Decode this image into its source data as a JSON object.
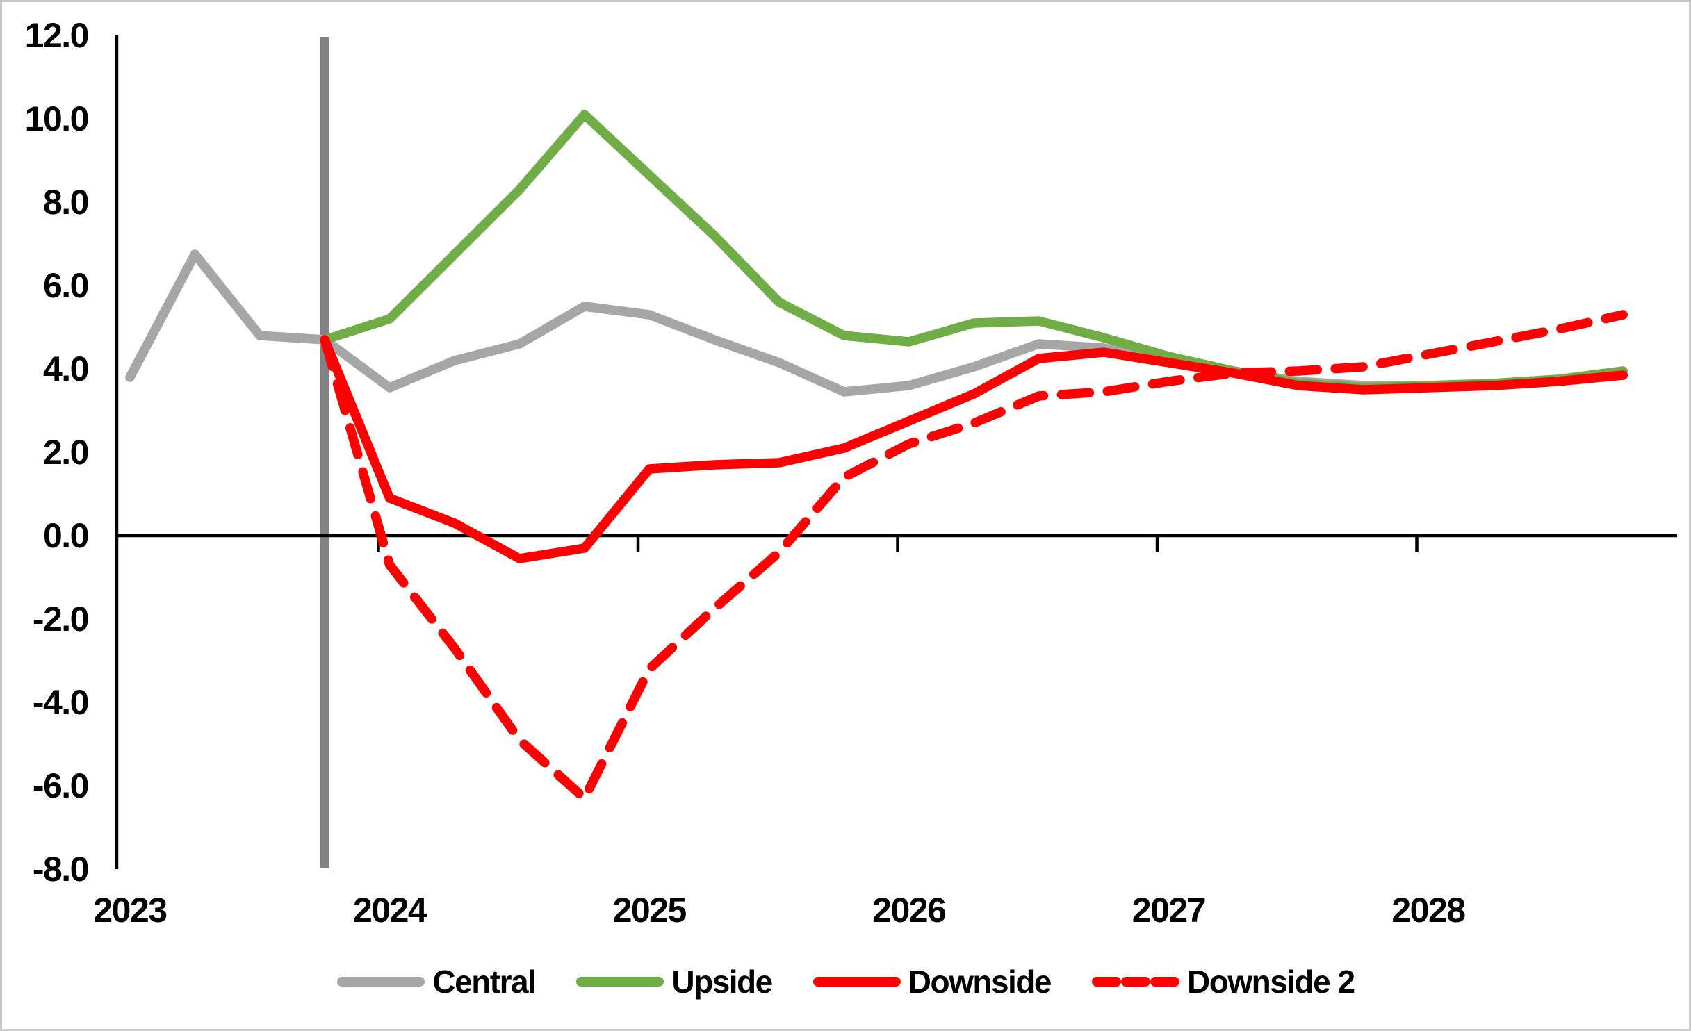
{
  "chart_data": {
    "type": "line",
    "title": "",
    "x_axis": {
      "year_labels": [
        "2023",
        "2024",
        "2025",
        "2026",
        "2027",
        "2028"
      ],
      "categories": [
        "2023 Q1",
        "2023 Q2",
        "2023 Q3",
        "2023 Q4",
        "2024 Q1",
        "2024 Q2",
        "2024 Q3",
        "2024 Q4",
        "2025 Q1",
        "2025 Q2",
        "2025 Q3",
        "2025 Q4",
        "2026 Q1",
        "2026 Q2",
        "2026 Q3",
        "2026 Q4",
        "2027 Q1",
        "2027 Q2",
        "2027 Q3",
        "2027 Q4",
        "2028 Q1",
        "2028 Q2",
        "2028 Q3",
        "2028 Q4"
      ],
      "n_points": 24
    },
    "y_axis": {
      "min": -8.0,
      "max": 12.0,
      "tick_step": 2.0,
      "tick_labels": [
        "12.0",
        "10.0",
        "8.0",
        "6.0",
        "4.0",
        "2.0",
        "0.0",
        "-2.0",
        "-4.0",
        "-6.0",
        "-8.0"
      ],
      "zero_line": true
    },
    "forecast_divider": {
      "x_category": "2023 Q4",
      "color": "#828282"
    },
    "grid": "off",
    "legend_position": "bottom",
    "series": [
      {
        "name": "Central",
        "color": "#A6A6A6",
        "style": "solid",
        "start_index": 0,
        "values": [
          3.8,
          6.75,
          4.8,
          4.7,
          3.55,
          4.2,
          4.6,
          5.5,
          5.3,
          4.7,
          4.15,
          3.45,
          3.6,
          4.05,
          4.6,
          4.5,
          4.2,
          3.95,
          3.7,
          3.6,
          3.6,
          3.65,
          3.75,
          3.85
        ]
      },
      {
        "name": "Upside",
        "color": "#70AD47",
        "style": "solid",
        "start_index": 3,
        "values": [
          4.7,
          5.2,
          6.75,
          8.3,
          10.1,
          8.65,
          7.2,
          5.6,
          4.8,
          4.65,
          5.1,
          5.15,
          4.75,
          4.3,
          3.95,
          3.65,
          3.55,
          3.6,
          3.65,
          3.75,
          3.95
        ]
      },
      {
        "name": "Downside",
        "color": "#FF0000",
        "style": "solid",
        "start_index": 3,
        "values": [
          4.7,
          0.9,
          0.3,
          -0.55,
          -0.3,
          1.6,
          1.7,
          1.75,
          2.1,
          2.75,
          3.4,
          4.25,
          4.4,
          4.15,
          3.9,
          3.6,
          3.5,
          3.55,
          3.6,
          3.7,
          3.85
        ]
      },
      {
        "name": "Downside 2",
        "color": "#FF0000",
        "style": "dashed",
        "start_index": 3,
        "values": [
          4.7,
          -0.7,
          -2.7,
          -4.9,
          -6.3,
          -3.2,
          -1.75,
          -0.4,
          1.4,
          2.2,
          2.7,
          3.35,
          3.45,
          3.7,
          3.9,
          3.95,
          4.05,
          4.35,
          4.65,
          4.95,
          5.3
        ]
      }
    ]
  },
  "colors": {
    "axis": "#000000",
    "forecast_line": "#828282",
    "background": "#ffffff",
    "frame_border": "#c9c9c9"
  }
}
